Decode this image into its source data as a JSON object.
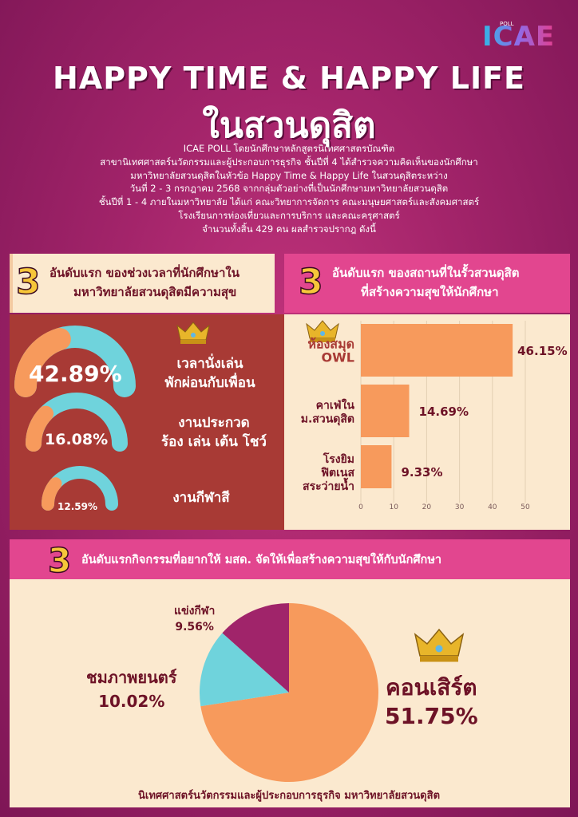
{
  "header": {
    "logo_text": "ICAE",
    "logo_small": "POLL",
    "title_line1": "HAPPY TIME & HAPPY LIFE",
    "title_line2": "ในสวนดุสิต"
  },
  "intro_lines": [
    "ICAE POLL โดยนักศึกษาหลักสูตรนิเทศศาสตรบัณฑิต",
    "สาขานิเทศศาสตร์นวัตกรรมและผู้ประกอบการธุรกิจ ชั้นปีที่ 4  ได้สำรวจความคิดเห็นของนักศึกษา",
    "มหาวิทยาลัยสวนดุสิตในหัวข้อ Happy Time & Happy Life ในสวนดุสิตระหว่าง",
    "วันที่ 2 - 3 กรกฎาคม 2568 จากกลุ่มตัวอย่างที่เป็นนักศึกษามหาวิทยาลัยสวนดุสิต",
    "ชั้นปีที่ 1 - 4 ภายในมหาวิทยาลัย ได้แก่ คณะวิทยาการจัดการ คณะมนุษยศาสตร์และสังคมศาสตร์",
    "โรงเรียนการท่องเที่ยวและการบริการ และคณะครุศาสตร์",
    "จำนวนทั้งสิ้น 429 คน ผลสำรวจปรากฎ ดังนี้"
  ],
  "sections": {
    "s1": {
      "number": "3",
      "line1": "อันดับแรก ของช่วงเวลาที่นักศึกษาใน",
      "line2": "มหาวิทยาลัยสวนดุสิตมีความสุข"
    },
    "s2": {
      "number": "3",
      "line1": "อันดับแรก ของสถานที่ในรั้วสวนดุสิต",
      "line2": "ที่สร้างความสุขให้นักศึกษา"
    },
    "s3": {
      "number": "3",
      "line1": "อันดับแรกกิจกรรมที่อยากให้ มสด. จัดให้เพื่อสร้างความสุขให้กับนักศึกษา"
    }
  },
  "chart_data": [
    {
      "type": "gauge",
      "items": [
        {
          "label_lines": [
            "เวลานั่งเล่น",
            "พักผ่อนกับเพื่อน"
          ],
          "value": 42.89,
          "value_text": "42.89%"
        },
        {
          "label_lines": [
            "งานประกวด",
            "ร้อง เล่น เต้น โชว์"
          ],
          "value": 16.08,
          "value_text": "16.08%"
        },
        {
          "label_lines": [
            "งานกีฬาสี"
          ],
          "value": 12.59,
          "value_text": "12.59%"
        }
      ]
    },
    {
      "type": "bar",
      "orientation": "horizontal",
      "categories": [
        [
          "ห้องสมุด",
          "OWL"
        ],
        [
          "คาเฟ่ใน",
          "ม.สวนดุสิต"
        ],
        [
          "โรงยิม",
          "ฟิตเนส",
          "สระว่ายน้ำ"
        ]
      ],
      "values": [
        46.15,
        14.69,
        9.33
      ],
      "value_labels": [
        "46.15%",
        "14.69%",
        "9.33%"
      ],
      "xlim": [
        0,
        50
      ],
      "xticks": [
        "0",
        "10",
        "20",
        "30",
        "40",
        "50"
      ],
      "grid": true
    },
    {
      "type": "pie",
      "slices": [
        {
          "label": "คอนเสิร์ต",
          "value": 51.75,
          "value_text": "51.75%",
          "color": "#f79a5c"
        },
        {
          "label": "ชมภาพยนตร์",
          "value": 10.02,
          "value_text": "10.02%",
          "color": "#6fd3dc"
        },
        {
          "label": "แข่งกีฬา",
          "value": 9.56,
          "value_text": "9.56%",
          "color": "#a0246a"
        }
      ]
    }
  ],
  "colors": {
    "orange": "#f79a5c",
    "cyan": "#6fd3dc",
    "magenta": "#a0246a",
    "cream": "#fbe9cf",
    "pink": "#e2468f",
    "brick": "#a83a35",
    "dark_text": "#6d1226"
  },
  "icons": [
    "crown-icon"
  ],
  "footer": "นิเทศศาสตร์นวัตกรรมและผู้ประกอบการธุรกิจ มหาวิทยาลัยสวนดุสิต"
}
